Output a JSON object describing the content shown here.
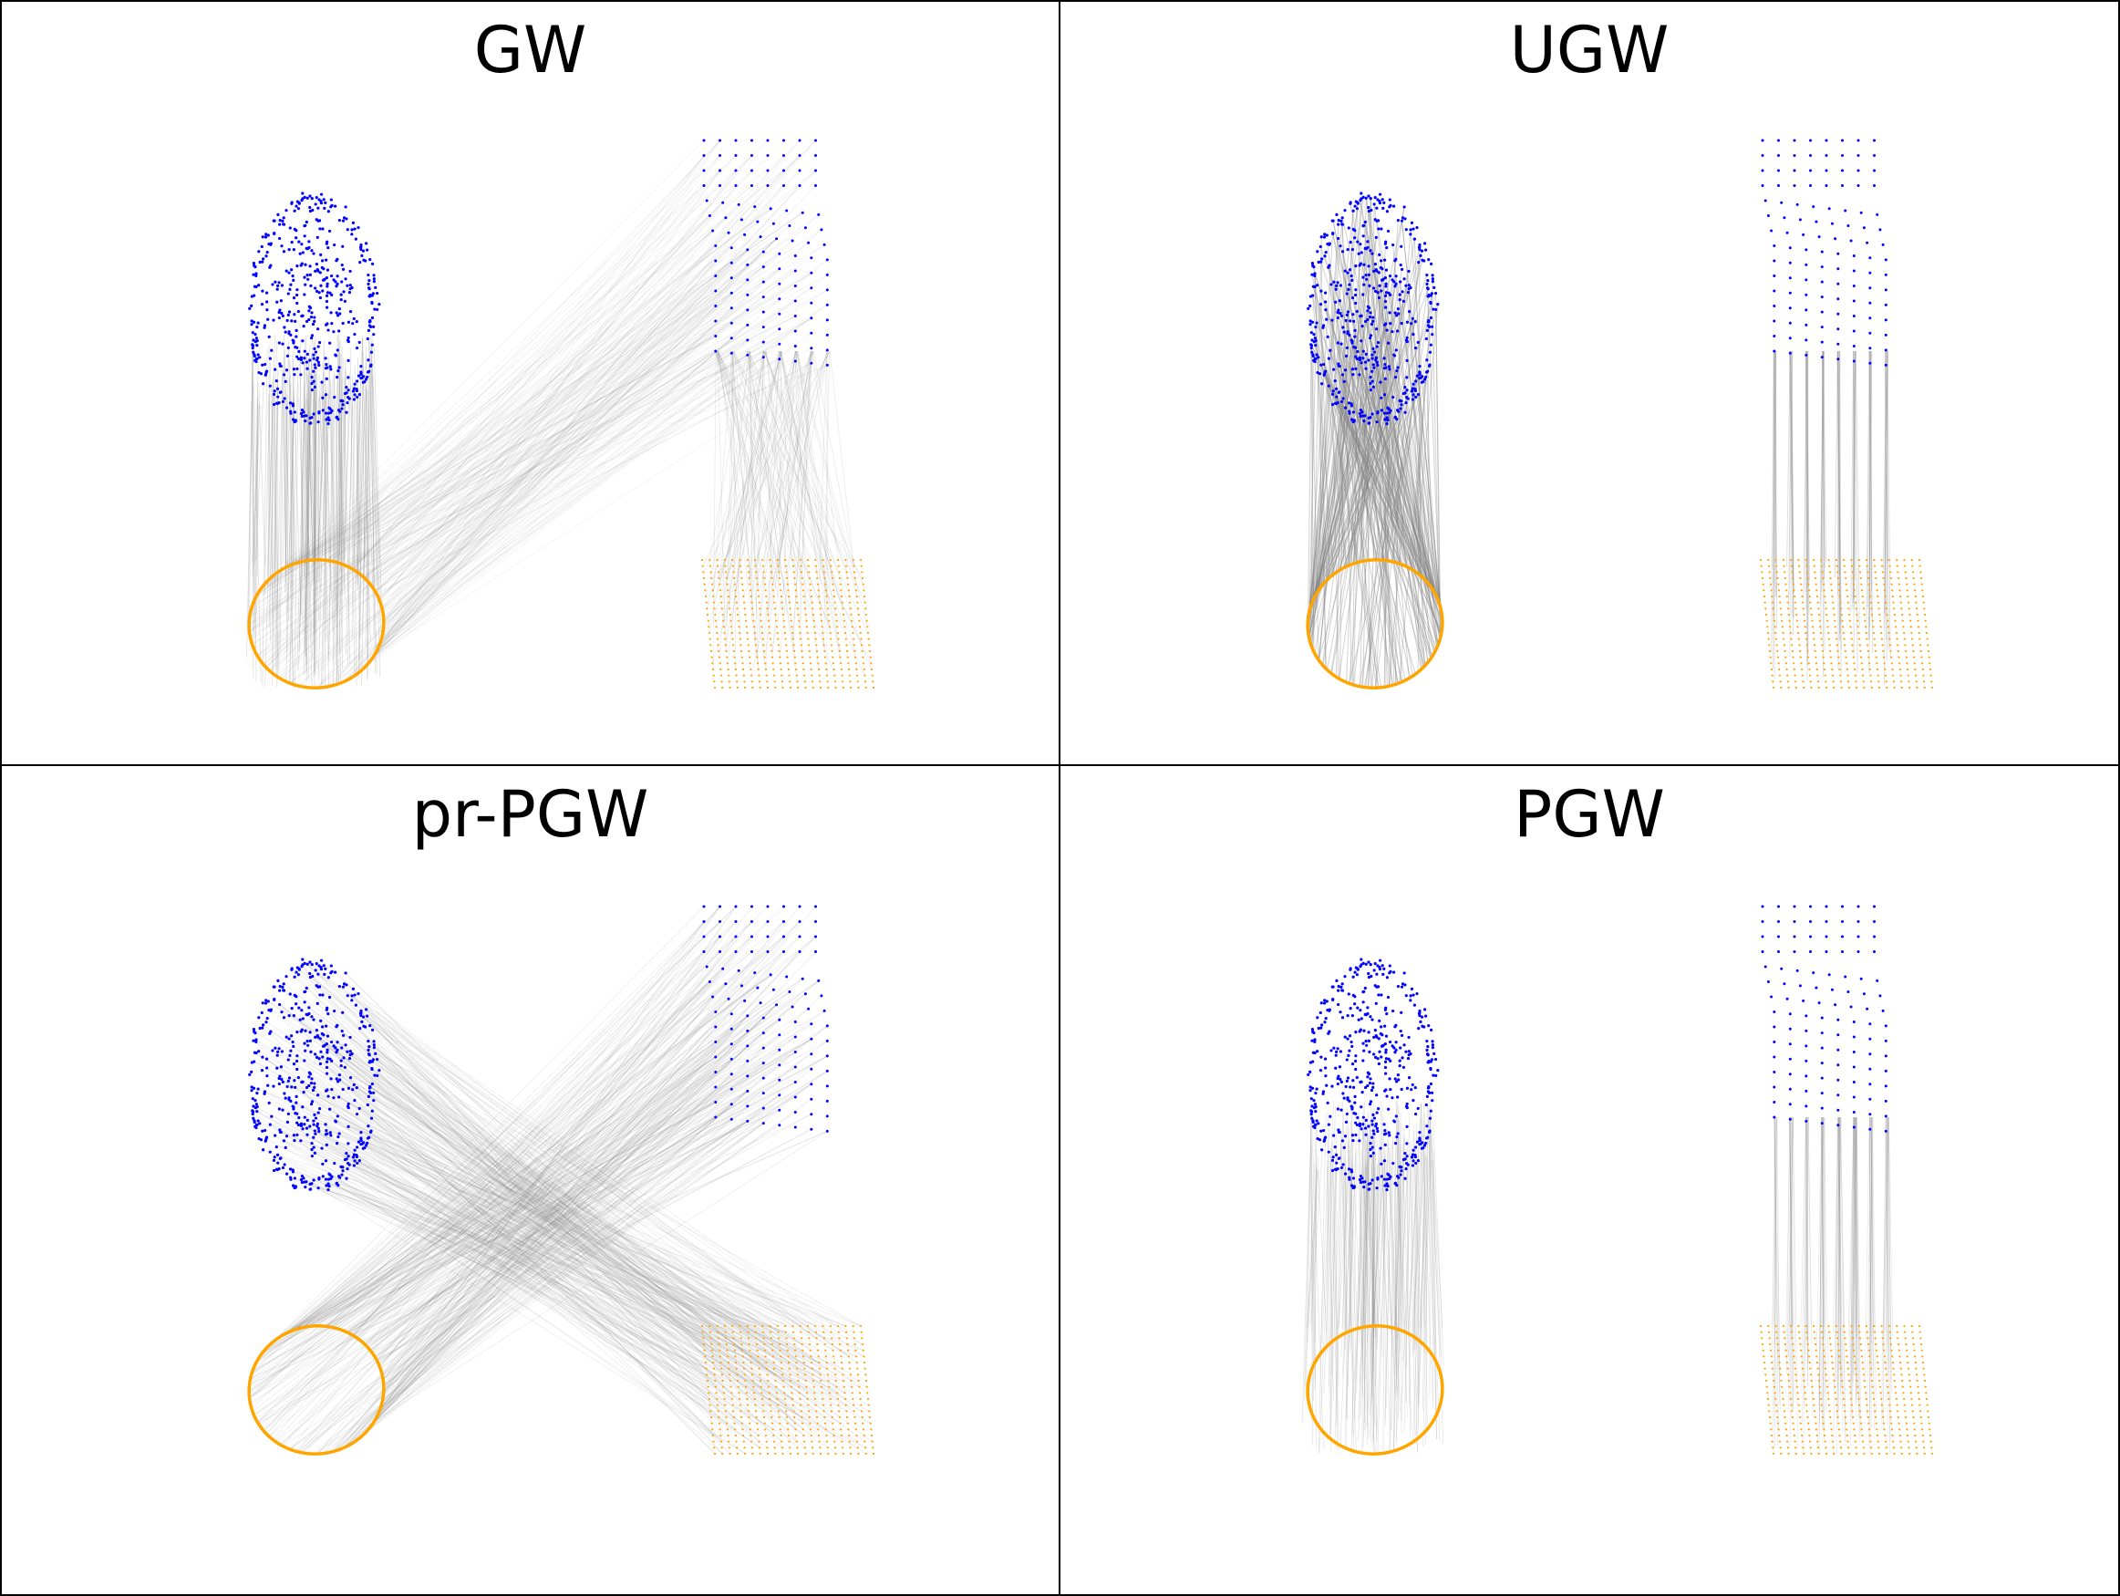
{
  "figure": {
    "panels": [
      {
        "title": "GW",
        "mapping": "gw"
      },
      {
        "title": "UGW",
        "mapping": "ugw"
      },
      {
        "title": "pr-PGW",
        "mapping": "prpgw"
      },
      {
        "title": "PGW",
        "mapping": "pgw"
      }
    ],
    "colors": {
      "source_points": "#0000ff",
      "target_points": "#ffa500",
      "matching_lines": "#808080"
    }
  }
}
